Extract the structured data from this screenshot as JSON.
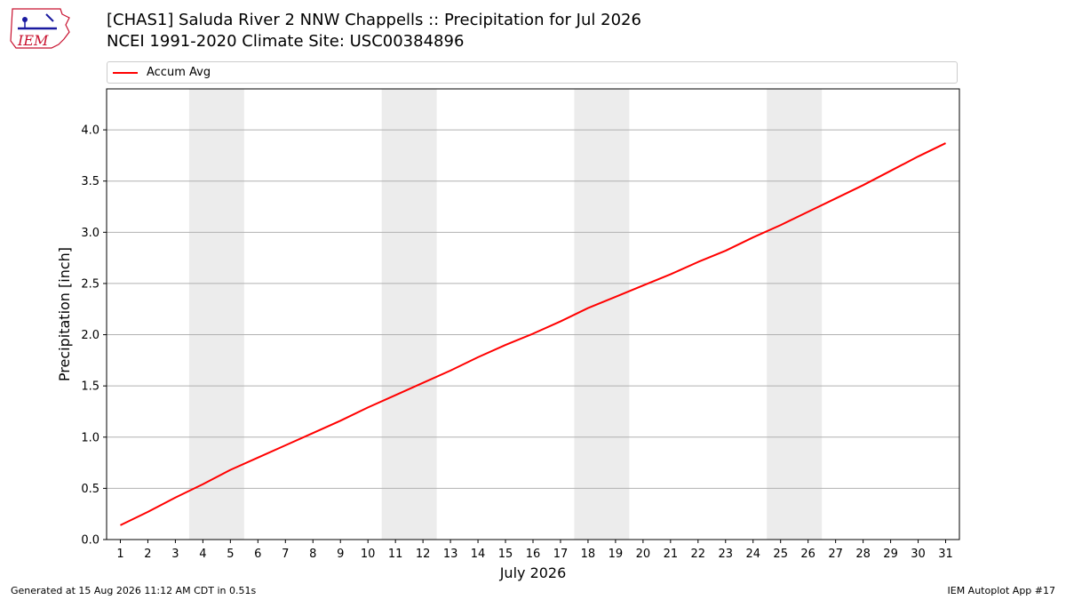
{
  "header": {
    "title": "[CHAS1] Saluda River 2 NNW Chappells :: Precipitation for Jul 2026",
    "subtitle": "NCEI 1991-2020 Climate Site: USC00384896",
    "logo_text": "IEM"
  },
  "legend": {
    "items": [
      {
        "label": "Accum Avg",
        "color": "#ff0000"
      }
    ]
  },
  "footer": {
    "left": "Generated at 15 Aug 2026 11:12 AM CDT in 0.51s",
    "right": "IEM Autoplot App #17"
  },
  "chart_data": {
    "type": "line",
    "xlabel": "July 2026",
    "ylabel": "Precipitation [inch]",
    "xlim": [
      0.5,
      31.5
    ],
    "ylim": [
      0,
      4.4
    ],
    "yticks": [
      0.0,
      0.5,
      1.0,
      1.5,
      2.0,
      2.5,
      3.0,
      3.5,
      4.0
    ],
    "ytick_labels": [
      "0.0",
      "0.5",
      "1.0",
      "1.5",
      "2.0",
      "2.5",
      "3.0",
      "3.5",
      "4.0"
    ],
    "x": [
      1,
      2,
      3,
      4,
      5,
      6,
      7,
      8,
      9,
      10,
      11,
      12,
      13,
      14,
      15,
      16,
      17,
      18,
      19,
      20,
      21,
      22,
      23,
      24,
      25,
      26,
      27,
      28,
      29,
      30,
      31
    ],
    "xtick_labels": [
      "1",
      "2",
      "3",
      "4",
      "5",
      "6",
      "7",
      "8",
      "9",
      "10",
      "11",
      "12",
      "13",
      "14",
      "15",
      "16",
      "17",
      "18",
      "19",
      "20",
      "21",
      "22",
      "23",
      "24",
      "25",
      "26",
      "27",
      "28",
      "29",
      "30",
      "31"
    ],
    "grid": "y",
    "weekend_bands": [
      [
        4,
        5
      ],
      [
        11,
        12
      ],
      [
        18,
        19
      ],
      [
        25,
        26
      ]
    ],
    "band_color": "#ececec",
    "series": [
      {
        "name": "Accum Avg",
        "color": "#ff0000",
        "values": [
          0.14,
          0.27,
          0.41,
          0.54,
          0.68,
          0.8,
          0.92,
          1.04,
          1.16,
          1.29,
          1.41,
          1.53,
          1.65,
          1.78,
          1.9,
          2.01,
          2.13,
          2.26,
          2.37,
          2.48,
          2.59,
          2.71,
          2.82,
          2.95,
          3.07,
          3.2,
          3.33,
          3.46,
          3.6,
          3.74,
          3.87
        ]
      }
    ]
  }
}
